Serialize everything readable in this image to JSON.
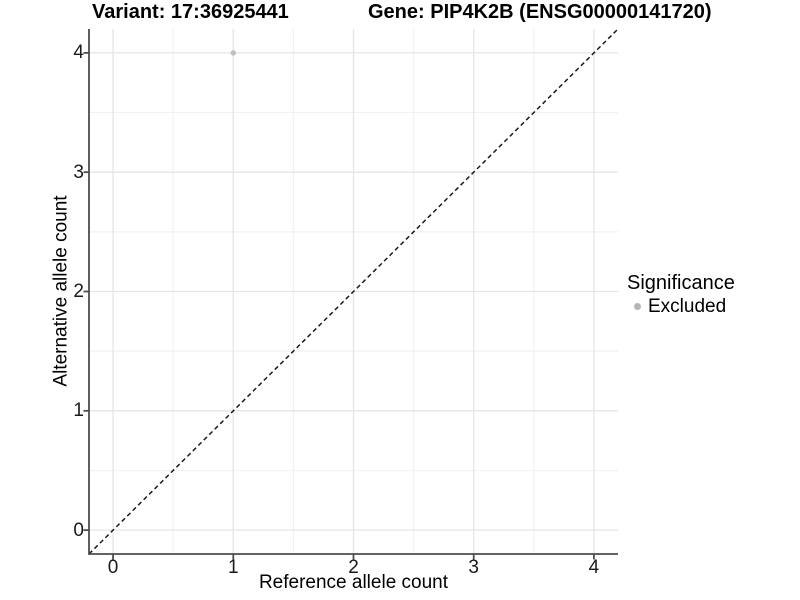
{
  "header": {
    "variant_title": "Variant: 17:36925441",
    "gene_title": "Gene: PIP4K2B (ENSG00000141720)"
  },
  "chart_data": {
    "type": "scatter",
    "xlabel": "Reference allele count",
    "ylabel": "Alternative allele count",
    "xlim": [
      -0.2,
      4.2
    ],
    "ylim": [
      -0.2,
      4.2
    ],
    "xticks": [
      0,
      1,
      2,
      3,
      4
    ],
    "yticks": [
      0,
      1,
      2,
      3,
      4
    ],
    "x_minor": [
      0.5,
      1.5,
      2.5,
      3.5
    ],
    "y_minor": [
      0.5,
      1.5,
      2.5,
      3.5
    ],
    "grid": "major and minor, on white background",
    "legend_position": "right",
    "points": [
      {
        "x": 1,
        "y": 4,
        "significance": "Excluded"
      }
    ],
    "identity_line": {
      "style": "dashed",
      "from": [
        -0.2,
        -0.2
      ],
      "to": [
        4.2,
        4.2
      ]
    }
  },
  "legend": {
    "title": "Significance",
    "items": [
      {
        "label": "Excluded",
        "color": "#b5b5b5",
        "marker": "circle"
      }
    ]
  },
  "colors": {
    "point": "#bfbfbf",
    "grid_major": "#e5e5e5",
    "grid_minor": "#f2f2f2",
    "axis": "#4d4d4d",
    "identity_line": "#1a1a1a",
    "text": "#000000",
    "background": "#ffffff"
  }
}
